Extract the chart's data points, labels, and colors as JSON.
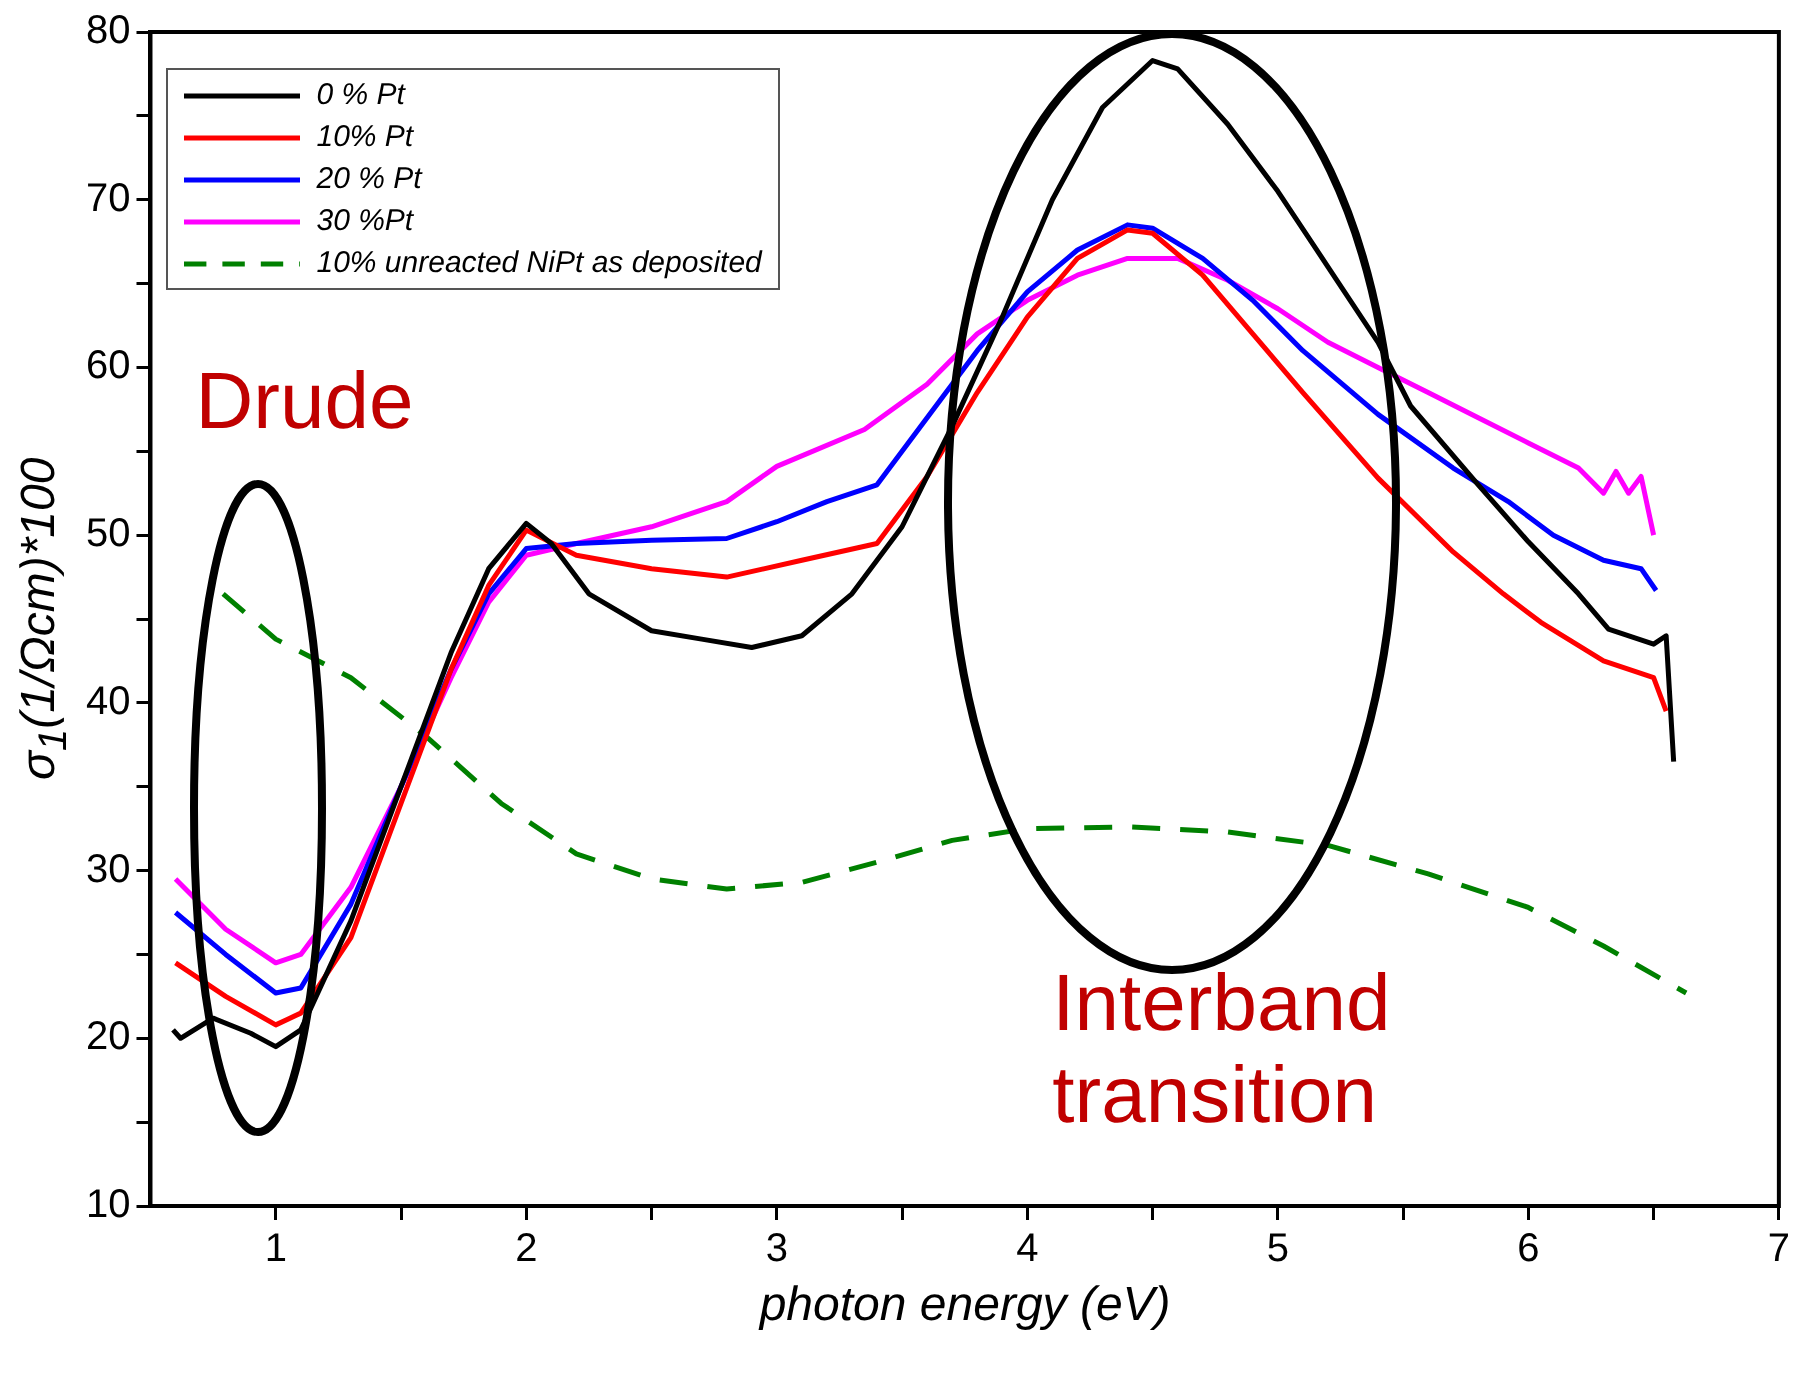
{
  "chart_data": {
    "type": "line",
    "xlabel": "photon energy (eV)",
    "ylabel": "σ$_{1}$(1/Ωcm)*100",
    "xlim": [
      0.5,
      7
    ],
    "ylim": [
      10,
      80
    ],
    "xticks": [
      1,
      {
        "value": 1.5,
        "label": null
      },
      2,
      {
        "value": 2.5,
        "label": null
      },
      3,
      {
        "value": 3.5,
        "label": null
      },
      4,
      {
        "value": 4.5,
        "label": null
      },
      5,
      {
        "value": 5.5,
        "label": null
      },
      6,
      {
        "value": 6.5,
        "label": null
      },
      7
    ],
    "yticks": [
      10,
      {
        "value": 15,
        "label": null
      },
      20,
      {
        "value": 25,
        "label": null
      },
      30,
      {
        "value": 35,
        "label": null
      },
      40,
      {
        "value": 45,
        "label": null
      },
      50,
      {
        "value": 55,
        "label": null
      },
      60,
      {
        "value": 65,
        "label": null
      },
      70,
      {
        "value": 75,
        "label": null
      },
      80
    ],
    "grid": false,
    "legend": "top left",
    "marker": "none",
    "annotations": [
      "Drude",
      "Interband transition"
    ],
    "series": [
      {
        "name": "0 % Pt",
        "color": "#000000",
        "line_style": "solid",
        "x": [
          0.59,
          0.62,
          0.75,
          0.9,
          1.0,
          1.1,
          1.3,
          1.5,
          1.7,
          1.85,
          2.0,
          2.1,
          2.25,
          2.5,
          2.7,
          2.9,
          3.1,
          3.3,
          3.5,
          3.7,
          3.9,
          4.1,
          4.3,
          4.5,
          4.6,
          4.8,
          5.0,
          5.2,
          5.4,
          5.53,
          5.8,
          6.0,
          6.2,
          6.32,
          6.5,
          6.55,
          6.58
        ],
        "values": [
          20.5,
          20.0,
          21.2,
          20.3,
          19.5,
          20.5,
          27,
          35,
          43,
          48,
          50.7,
          49.5,
          46.5,
          44.3,
          43.8,
          43.3,
          44,
          46.5,
          50.5,
          56.5,
          63,
          70,
          75.5,
          78.3,
          77.8,
          74.5,
          70.5,
          66,
          61.5,
          57.7,
          53,
          49.6,
          46.5,
          44.4,
          43.5,
          44,
          36.5
        ]
      },
      {
        "name": "10% Pt",
        "color": "#ff0000",
        "line_style": "solid",
        "x": [
          0.6,
          0.8,
          1.0,
          1.1,
          1.3,
          1.5,
          1.7,
          1.85,
          2.0,
          2.2,
          2.5,
          2.8,
          3.1,
          3.4,
          3.6,
          3.8,
          4.0,
          4.2,
          4.4,
          4.5,
          4.7,
          4.9,
          5.1,
          5.4,
          5.7,
          5.9,
          6.05,
          6.3,
          6.5,
          6.55
        ],
        "values": [
          24.5,
          22.5,
          20.8,
          21.5,
          26,
          34,
          42,
          47,
          50.3,
          48.8,
          48,
          47.5,
          48.5,
          49.5,
          53.5,
          58.5,
          63,
          66.5,
          68.2,
          68,
          65.5,
          62,
          58.5,
          53.4,
          49,
          46.5,
          44.8,
          42.5,
          41.5,
          39.5
        ]
      },
      {
        "name": "20 % Pt",
        "color": "#0000ff",
        "line_style": "solid",
        "x": [
          0.6,
          0.8,
          1.0,
          1.1,
          1.3,
          1.5,
          1.7,
          1.85,
          2.0,
          2.2,
          2.5,
          2.8,
          3.0,
          3.2,
          3.4,
          3.6,
          3.8,
          4.0,
          4.2,
          4.4,
          4.5,
          4.7,
          4.9,
          5.1,
          5.4,
          5.7,
          5.92,
          6.1,
          6.3,
          6.45,
          6.51
        ],
        "values": [
          27.5,
          25,
          22.7,
          23,
          28,
          35,
          42,
          46.5,
          49.2,
          49.5,
          49.7,
          49.8,
          50.8,
          52,
          53,
          57,
          61,
          64.5,
          67,
          68.5,
          68.3,
          66.5,
          64,
          61,
          57.2,
          54,
          52,
          50,
          48.5,
          48,
          46.7
        ]
      },
      {
        "name": "30 %Pt",
        "color": "#ff00ff",
        "line_style": "solid",
        "x": [
          0.6,
          0.8,
          1.0,
          1.1,
          1.3,
          1.5,
          1.7,
          1.85,
          2.0,
          2.2,
          2.5,
          2.8,
          3.0,
          3.35,
          3.6,
          3.8,
          4.0,
          4.2,
          4.4,
          4.6,
          4.8,
          5.0,
          5.2,
          5.4,
          5.6,
          5.8,
          6.0,
          6.2,
          6.3,
          6.35,
          6.4,
          6.45,
          6.5
        ],
        "values": [
          29.5,
          26.5,
          24.5,
          25,
          29,
          35,
          41.5,
          46,
          48.8,
          49.5,
          50.5,
          52,
          54.1,
          56.3,
          59,
          62,
          64,
          65.5,
          66.5,
          66.5,
          65.2,
          63.5,
          61.5,
          60,
          58.5,
          57,
          55.5,
          54,
          52.5,
          53.8,
          52.5,
          53.5,
          50
        ]
      },
      {
        "name": "10% unreacted NiPt as deposited",
        "color": "#008000",
        "line_style": "dashed",
        "x": [
          0.79,
          1.0,
          1.3,
          1.6,
          1.9,
          2.2,
          2.5,
          2.8,
          3.1,
          3.4,
          3.7,
          4.0,
          4.41,
          4.8,
          5.2,
          5.6,
          6.0,
          6.3,
          6.63
        ],
        "values": [
          46.5,
          43.8,
          41.5,
          38,
          34,
          31,
          29.5,
          28.9,
          29.3,
          30.5,
          31.8,
          32.5,
          32.6,
          32.3,
          31.5,
          29.8,
          27.8,
          25.5,
          22.7
        ]
      }
    ]
  }
}
